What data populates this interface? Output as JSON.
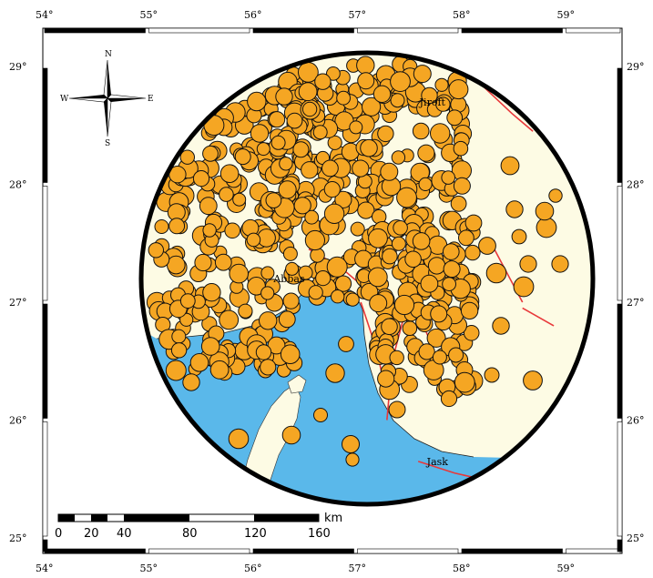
{
  "map": {
    "longitude_ticks": [
      "54°",
      "55°",
      "56°",
      "57°",
      "58°",
      "59°"
    ],
    "latitude_ticks": [
      "29°",
      "28°",
      "27°",
      "26°",
      "25°"
    ],
    "compass": {
      "north": "N",
      "south": "S",
      "east": "E",
      "west": "W"
    },
    "places": [
      {
        "name": "Jiroft",
        "lon": 57.7,
        "lat": 28.7
      },
      {
        "name": "Abbas",
        "lon": 56.3,
        "lat": 27.2
      },
      {
        "name": "Jask",
        "lon": 57.77,
        "lat": 25.65
      }
    ],
    "scale_bar": {
      "labels": [
        "0",
        "20",
        "40",
        "80",
        "120",
        "160"
      ],
      "unit": "km"
    },
    "colors": {
      "land": "#fdfbe4",
      "sea": "#5ab8ea",
      "epicenter_fill": "#f5a623",
      "epicenter_stroke": "#111111",
      "fault": "#e8383a",
      "frame": "#000000"
    }
  }
}
